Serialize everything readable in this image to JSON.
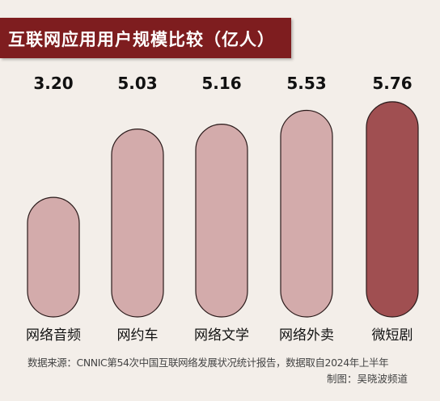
{
  "header": {
    "title": "互联网应用用户规模比较（亿人）"
  },
  "chart_data": {
    "type": "bar",
    "title": "互联网应用用户规模比较（亿人）",
    "categories": [
      "网络音频",
      "网约车",
      "网络文学",
      "网络外卖",
      "微短剧"
    ],
    "values": [
      3.2,
      5.03,
      5.16,
      5.53,
      5.76
    ],
    "value_labels": [
      "3.20",
      "5.03",
      "5.16",
      "5.53",
      "5.76"
    ],
    "xlabel": "",
    "ylabel": "",
    "ylim": [
      0,
      6
    ],
    "grid": false,
    "legend": "none",
    "bar_color": "#d3abab",
    "highlight_color": "#a04f51",
    "outline_color": "#2a1a1a"
  },
  "footer": {
    "source": "数据来源：CNNIC第54次中国互联网络发展状况统计报告，数据取自2024年上半年",
    "credit": "制图：吴晓波频道"
  }
}
